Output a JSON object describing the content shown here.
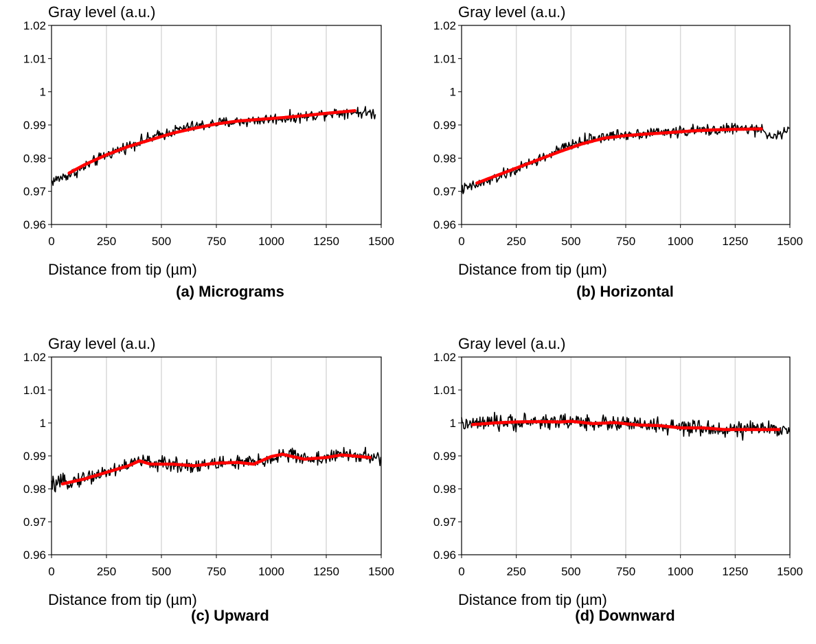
{
  "chart_data": [
    {
      "type": "line",
      "caption": "(a) Micrograms",
      "ylabel": "Gray level (a.u.)",
      "xlabel": "Distance from tip (µm)",
      "xlim": [
        0,
        1500
      ],
      "ylim": [
        0.96,
        1.02
      ],
      "xticks": [
        "0",
        "250",
        "500",
        "750",
        "1000",
        "1250",
        "1500"
      ],
      "yticks": [
        "0.96",
        "0.97",
        "0.98",
        "0.99",
        "1",
        "1.01",
        "1.02"
      ],
      "grid": "vertical",
      "series": [
        {
          "role": "raw",
          "color": "#000000",
          "noise": 0.0012,
          "x": [
            0,
            100,
            250,
            400,
            500,
            600,
            750,
            900,
            1000,
            1150,
            1250,
            1350,
            1475
          ],
          "y": [
            0.973,
            0.9755,
            0.981,
            0.985,
            0.987,
            0.989,
            0.9905,
            0.9912,
            0.9918,
            0.9925,
            0.9935,
            0.994,
            0.9935
          ]
        },
        {
          "role": "fit",
          "color": "#ff0000",
          "x": [
            80,
            150,
            250,
            350,
            450,
            550,
            650,
            750,
            850,
            950,
            1050,
            1150,
            1250,
            1380
          ],
          "y": [
            0.9755,
            0.978,
            0.981,
            0.9835,
            0.9855,
            0.9875,
            0.989,
            0.9903,
            0.9912,
            0.9917,
            0.9922,
            0.9928,
            0.9935,
            0.9943
          ]
        }
      ]
    },
    {
      "type": "line",
      "caption": "(b) Horizontal",
      "ylabel": "Gray level (a.u.)",
      "xlabel": "Distance from tip (µm)",
      "xlim": [
        0,
        1500
      ],
      "ylim": [
        0.96,
        1.02
      ],
      "xticks": [
        "0",
        "250",
        "500",
        "750",
        "1000",
        "1250",
        "1500"
      ],
      "yticks": [
        "0.96",
        "0.97",
        "0.98",
        "0.99",
        "1",
        "1.01",
        "1.02"
      ],
      "grid": "vertical",
      "series": [
        {
          "role": "raw",
          "color": "#000000",
          "noise": 0.0012,
          "x": [
            0,
            100,
            250,
            400,
            500,
            600,
            750,
            900,
            1000,
            1150,
            1250,
            1350,
            1450,
            1500
          ],
          "y": [
            0.9705,
            0.9725,
            0.9765,
            0.981,
            0.984,
            0.986,
            0.9872,
            0.9878,
            0.988,
            0.9885,
            0.989,
            0.9885,
            0.9865,
            0.989
          ]
        },
        {
          "role": "fit",
          "color": "#ff0000",
          "x": [
            70,
            150,
            250,
            350,
            450,
            550,
            650,
            750,
            850,
            950,
            1050,
            1150,
            1250,
            1370
          ],
          "y": [
            0.9725,
            0.9745,
            0.977,
            0.9795,
            0.982,
            0.9843,
            0.986,
            0.9868,
            0.9873,
            0.9877,
            0.9882,
            0.9885,
            0.9887,
            0.9888
          ]
        }
      ]
    },
    {
      "type": "line",
      "caption": "(c) Upward",
      "ylabel": "Gray level (a.u.)",
      "xlabel": "Distance from tip (µm)",
      "xlim": [
        0,
        1500
      ],
      "ylim": [
        0.96,
        1.02
      ],
      "xticks": [
        "0",
        "250",
        "500",
        "750",
        "1000",
        "1250",
        "1500"
      ],
      "yticks": [
        "0.96",
        "0.97",
        "0.98",
        "0.99",
        "1",
        "1.01",
        "1.02"
      ],
      "grid": "vertical",
      "series": [
        {
          "role": "raw",
          "color": "#000000",
          "noise": 0.0016,
          "x": [
            0,
            100,
            250,
            400,
            500,
            650,
            800,
            950,
            1050,
            1200,
            1350,
            1500
          ],
          "y": [
            0.981,
            0.9825,
            0.985,
            0.9885,
            0.9875,
            0.987,
            0.988,
            0.988,
            0.9905,
            0.989,
            0.9905,
            0.989
          ]
        },
        {
          "role": "fit",
          "color": "#ff0000",
          "x": [
            50,
            150,
            250,
            350,
            400,
            450,
            550,
            650,
            750,
            850,
            920,
            1000,
            1050,
            1150,
            1250,
            1320,
            1450
          ],
          "y": [
            0.9815,
            0.983,
            0.985,
            0.987,
            0.9885,
            0.9875,
            0.9875,
            0.987,
            0.9878,
            0.988,
            0.9875,
            0.9898,
            0.9905,
            0.989,
            0.9895,
            0.9903,
            0.9895
          ]
        }
      ]
    },
    {
      "type": "line",
      "caption": "(d) Downward",
      "ylabel": "Gray level (a.u.)",
      "xlabel": "Distance from tip (µm)",
      "xlim": [
        0,
        1500
      ],
      "ylim": [
        0.96,
        1.02
      ],
      "xticks": [
        "0",
        "250",
        "500",
        "750",
        "1000",
        "1250",
        "1500"
      ],
      "yticks": [
        "0.96",
        "0.97",
        "0.98",
        "0.99",
        "1",
        "1.01",
        "1.02"
      ],
      "grid": "vertical",
      "series": [
        {
          "role": "raw",
          "color": "#000000",
          "noise": 0.0017,
          "x": [
            0,
            150,
            300,
            500,
            650,
            800,
            1000,
            1150,
            1300,
            1500
          ],
          "y": [
            0.9995,
            1.0,
            1.0003,
            1.0005,
            1.0,
            0.9995,
            0.9985,
            0.998,
            0.998,
            0.9985
          ]
        },
        {
          "role": "fit",
          "color": "#ff0000",
          "x": [
            50,
            150,
            250,
            350,
            450,
            500,
            600,
            700,
            800,
            900,
            1000,
            1100,
            1200,
            1300,
            1450
          ],
          "y": [
            0.9995,
            1.0,
            1.0003,
            1.0004,
            1.0003,
            1.0005,
            0.9998,
            1.0001,
            0.9994,
            0.9992,
            0.9985,
            0.9985,
            0.998,
            0.998,
            0.998
          ]
        }
      ]
    }
  ]
}
